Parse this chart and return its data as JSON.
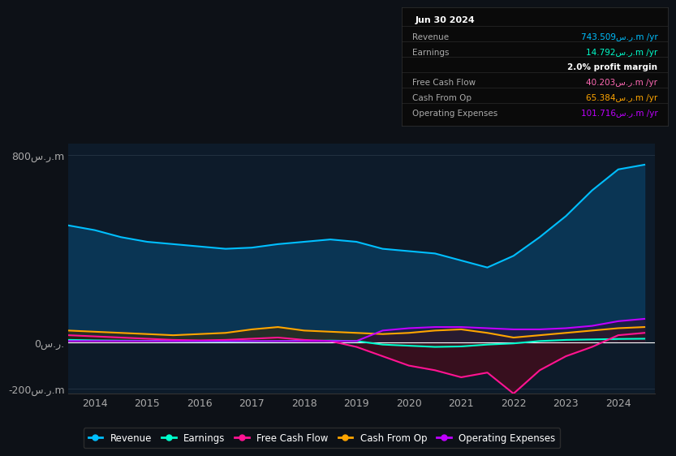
{
  "bg_color": "#0d1117",
  "plot_bg_color": "#0d1b2a",
  "title": "Jun 30 2024",
  "info_box": {
    "Revenue": {
      "value": "743.509س.ر.m /yr",
      "color": "#00bfff"
    },
    "Earnings": {
      "value": "14.792س.ر.m /yr",
      "color": "#00ffcc"
    },
    "profit_margin": {
      "value": "2.0% profit margin",
      "color": "#ffffff"
    },
    "Free Cash Flow": {
      "value": "40.203س.ر.m /yr",
      "color": "#ff69b4"
    },
    "Cash From Op": {
      "value": "65.384س.ر.m /yr",
      "color": "#ffa500"
    },
    "Operating Expenses": {
      "value": "101.716س.ر.m /yr",
      "color": "#bf00ff"
    }
  },
  "years": [
    2013.5,
    2014,
    2014.5,
    2015,
    2015.5,
    2016,
    2016.5,
    2017,
    2017.5,
    2018,
    2018.5,
    2019,
    2019.5,
    2020,
    2020.5,
    2021,
    2021.5,
    2022,
    2022.5,
    2023,
    2023.5,
    2024,
    2024.5
  ],
  "revenue": [
    500,
    480,
    450,
    430,
    420,
    410,
    400,
    405,
    420,
    430,
    440,
    430,
    400,
    390,
    380,
    350,
    320,
    370,
    450,
    540,
    650,
    740,
    760
  ],
  "earnings": [
    10,
    8,
    7,
    6,
    5,
    4,
    3,
    4,
    5,
    6,
    7,
    5,
    -10,
    -15,
    -20,
    -18,
    -10,
    -5,
    5,
    10,
    12,
    14,
    15
  ],
  "free_cash_flow": [
    30,
    25,
    20,
    15,
    10,
    8,
    10,
    15,
    20,
    10,
    5,
    -20,
    -60,
    -100,
    -120,
    -150,
    -130,
    -220,
    -120,
    -60,
    -20,
    30,
    40
  ],
  "cash_from_op": [
    50,
    45,
    40,
    35,
    30,
    35,
    40,
    55,
    65,
    50,
    45,
    40,
    35,
    40,
    50,
    55,
    40,
    20,
    30,
    40,
    50,
    60,
    65
  ],
  "operating_expenses": [
    5,
    5,
    5,
    5,
    5,
    5,
    5,
    5,
    5,
    5,
    5,
    5,
    50,
    60,
    65,
    65,
    60,
    55,
    55,
    60,
    70,
    90,
    100
  ],
  "ylim": [
    -220,
    850
  ],
  "yticks": [
    -200,
    0,
    800
  ],
  "ytick_labels": [
    "-200س.ر.m",
    "0س.ر.",
    "800س.ر.m"
  ],
  "xlim": [
    2013.5,
    2024.7
  ],
  "xticks": [
    2014,
    2015,
    2016,
    2017,
    2018,
    2019,
    2020,
    2021,
    2022,
    2023,
    2024
  ],
  "revenue_color": "#00bfff",
  "earnings_color": "#00ffcc",
  "free_cash_flow_color": "#ff1493",
  "cash_from_op_color": "#ffa500",
  "operating_expenses_color": "#bf00ff",
  "revenue_fill_color": "#0a3a5c",
  "earnings_fill_color": "#1a4a4a",
  "free_cash_flow_fill_color": "#4a0a1a",
  "cash_from_op_fill_color": "#3a2a0a",
  "legend_items": [
    "Revenue",
    "Earnings",
    "Free Cash Flow",
    "Cash From Op",
    "Operating Expenses"
  ],
  "legend_colors": [
    "#00bfff",
    "#00ffcc",
    "#ff1493",
    "#ffa500",
    "#bf00ff"
  ]
}
